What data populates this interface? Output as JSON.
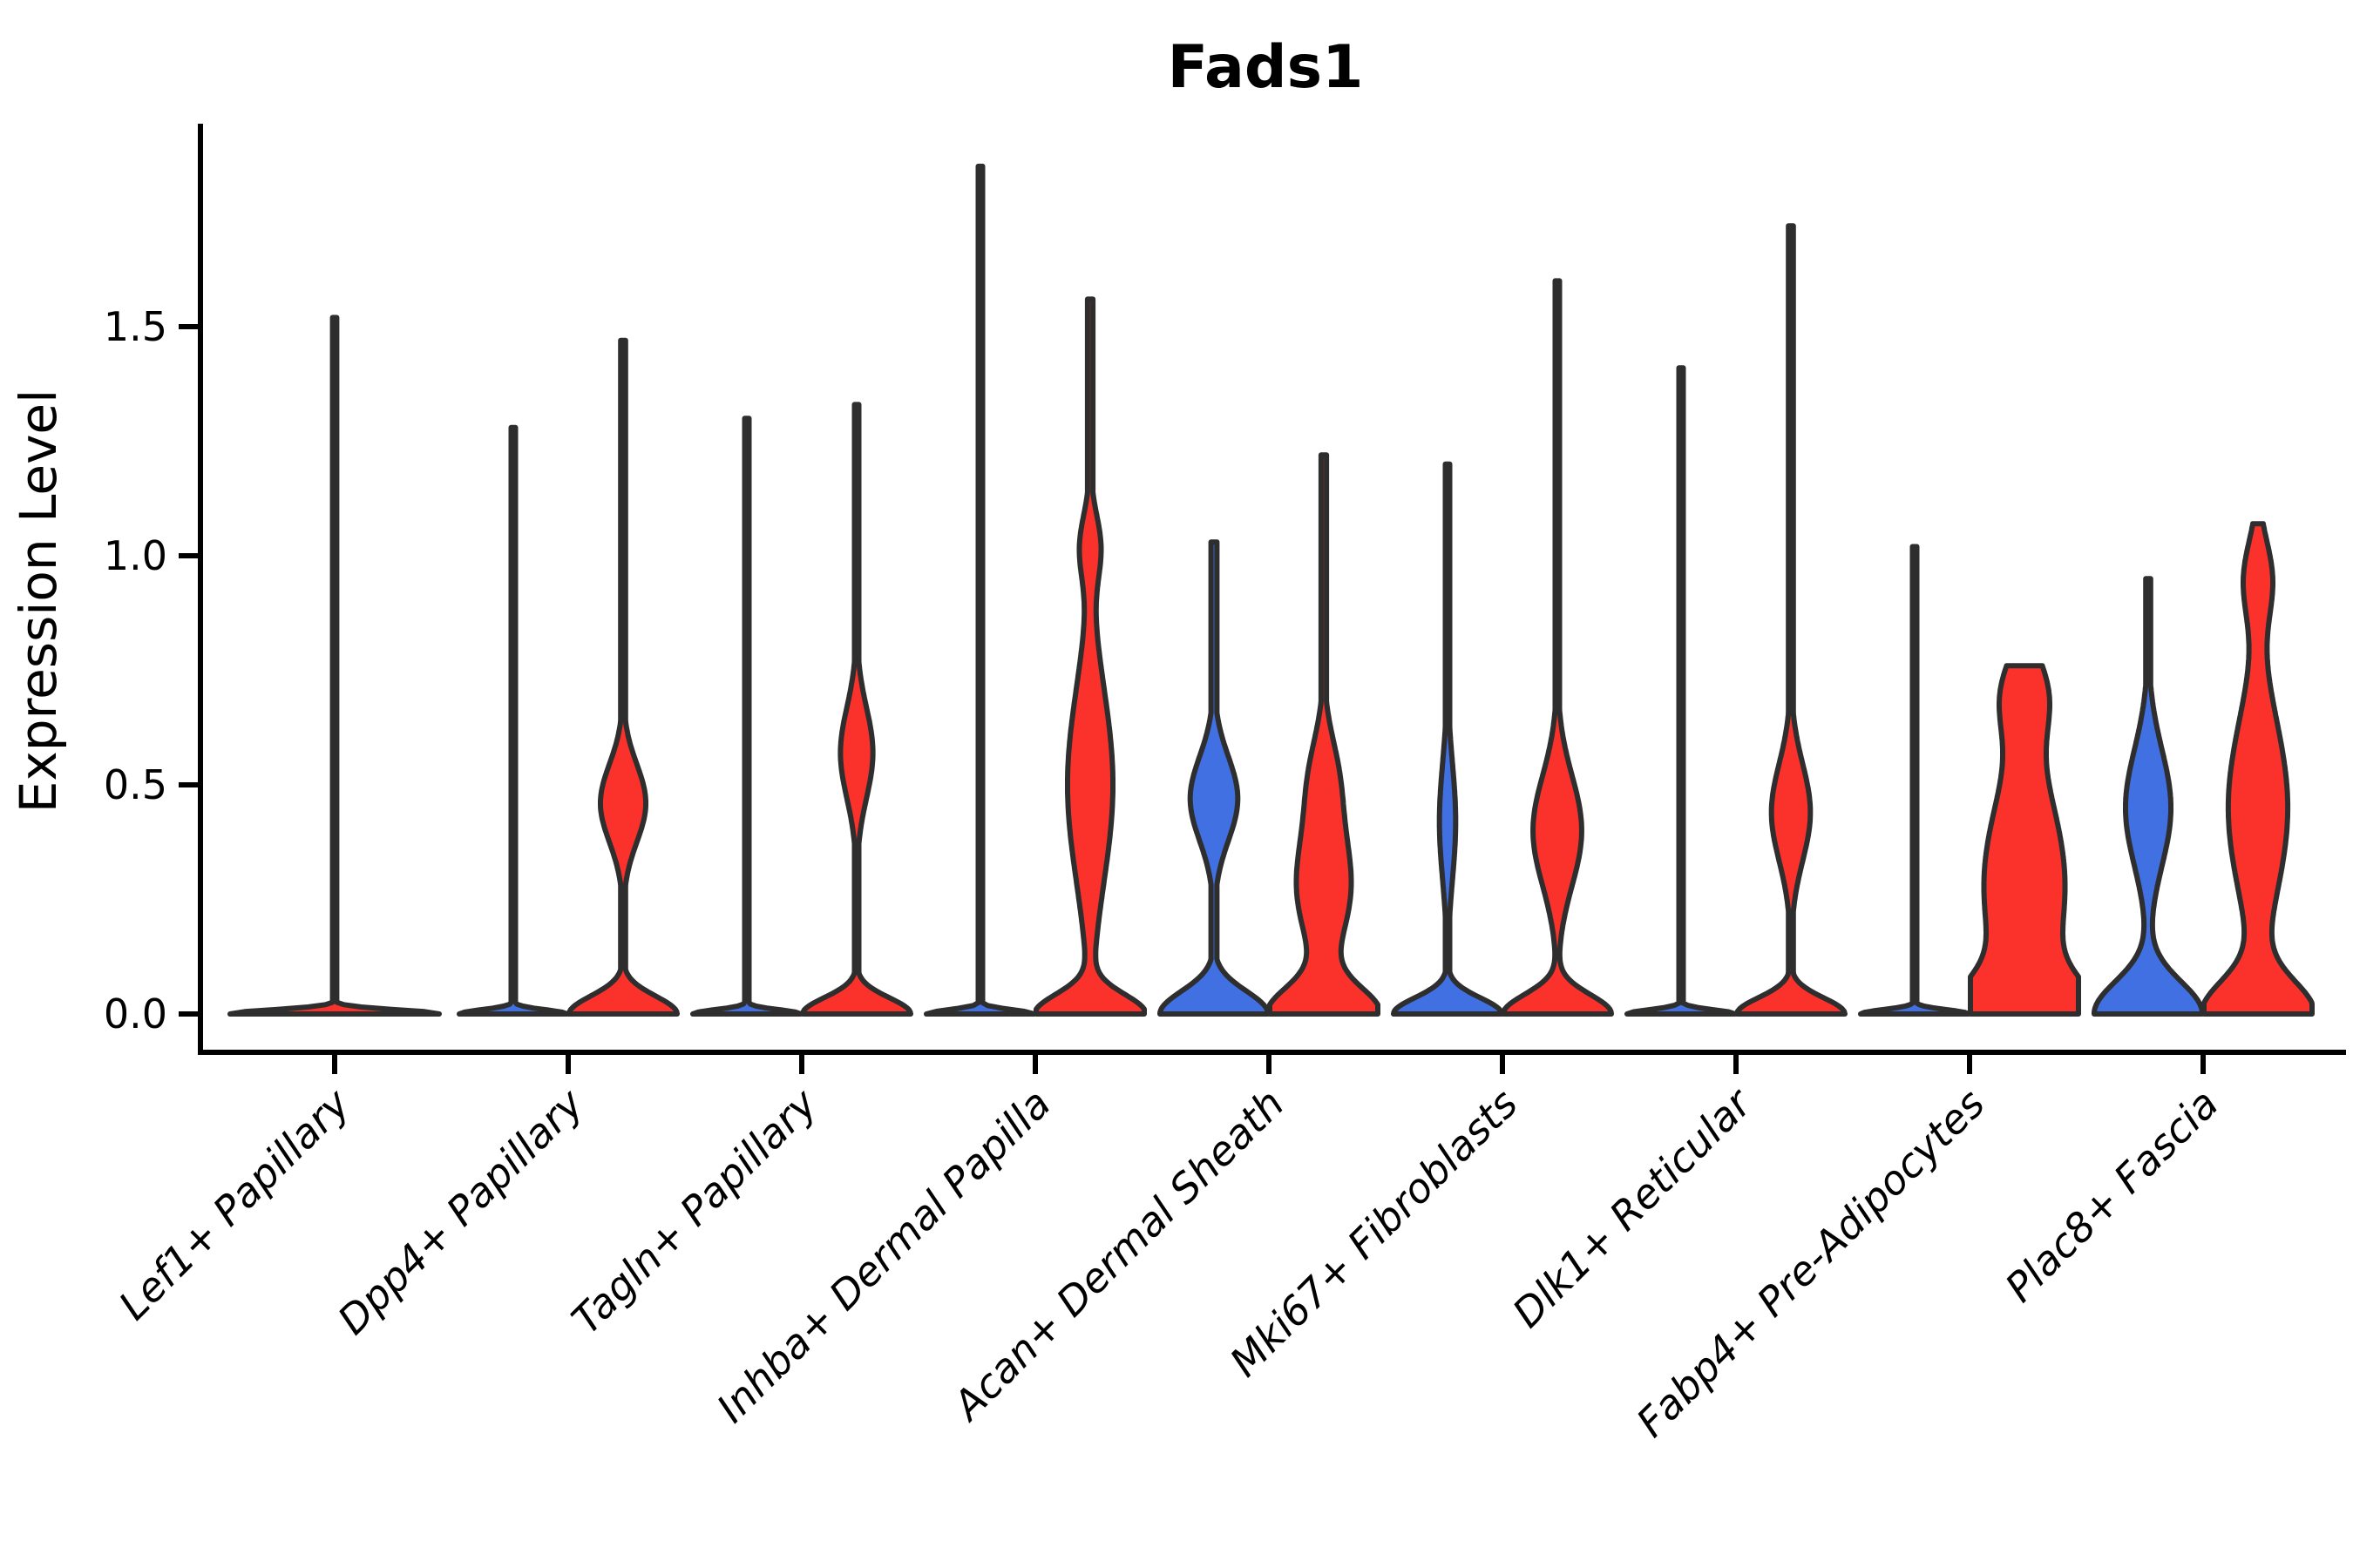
{
  "chart_data": {
    "type": "violin",
    "title": "Fads1",
    "ylabel": "Expression Level",
    "xlabel": "",
    "ylim": [
      -0.08,
      1.94
    ],
    "grid": false,
    "legend": "none",
    "yticks": [
      {
        "label": "0.0",
        "value": 0.0
      },
      {
        "label": "0.5",
        "value": 0.5
      },
      {
        "label": "1.0",
        "value": 1.0
      },
      {
        "label": "1.5",
        "value": 1.5
      }
    ],
    "colors": {
      "blue": "#4070e2",
      "red": "#fb322c",
      "outline": "#2e2e2e",
      "axis": "#000000",
      "background": "#ffffff"
    },
    "categories": [
      "Lef1+ Papillary",
      "Dpp4+ Papillary",
      "Tagln+ Papillary",
      "Inhba+ Dermal Papilla",
      "Acan+ Dermal Sheath",
      "Mki67+ Fibroblasts",
      "Dlk1+ Reticular",
      "Fabp4+ Pre-Adipocytes",
      "Plac8+ Fascia"
    ],
    "violins": [
      {
        "category": "Lef1+ Papillary",
        "group": "single",
        "pos": "center",
        "color": "red",
        "max": 1.52,
        "bumps": [
          [
            1,
            0,
            0.013
          ]
        ],
        "spike": 0.02
      },
      {
        "category": "Dpp4+ Papillary",
        "group": "group1",
        "pos": "left",
        "color": "blue",
        "max": 1.28,
        "bumps": [
          [
            1,
            0,
            0.013
          ]
        ],
        "spike": 0.04
      },
      {
        "category": "Dpp4+ Papillary",
        "group": "group2",
        "pos": "right",
        "color": "red",
        "max": 1.47,
        "bumps": [
          [
            1,
            0,
            0.055
          ],
          [
            0.42,
            0.46,
            0.12
          ]
        ],
        "spike": 0.045
      },
      {
        "category": "Tagln+ Papillary",
        "group": "group1",
        "pos": "left",
        "color": "blue",
        "max": 1.3,
        "bumps": [
          [
            1,
            0,
            0.013
          ]
        ],
        "spike": 0.04
      },
      {
        "category": "Tagln+ Papillary",
        "group": "group2",
        "pos": "right",
        "color": "red",
        "max": 1.33,
        "bumps": [
          [
            1,
            0,
            0.05
          ],
          [
            0.3,
            0.57,
            0.14
          ]
        ],
        "spike": 0.04
      },
      {
        "category": "Inhba+ Dermal Papilla",
        "group": "group1",
        "pos": "left",
        "color": "blue",
        "max": 1.85,
        "bumps": [
          [
            1,
            0,
            0.013
          ]
        ],
        "spike": 0.04
      },
      {
        "category": "Inhba+ Dermal Papilla",
        "group": "group2",
        "pos": "right",
        "color": "red",
        "max": 1.56,
        "bumps": [
          [
            1,
            0,
            0.06
          ],
          [
            0.42,
            0.5,
            0.3
          ],
          [
            0.18,
            1.02,
            0.1
          ]
        ],
        "spike": 0.05
      },
      {
        "category": "Acan+ Dermal Sheath",
        "group": "group1",
        "pos": "left",
        "color": "blue",
        "max": 1.03,
        "bumps": [
          [
            1,
            0,
            0.07
          ],
          [
            0.44,
            0.47,
            0.13
          ]
        ],
        "spike": 0.055
      },
      {
        "category": "Acan+ Dermal Sheath",
        "group": "group2",
        "pos": "right",
        "color": "red",
        "max": 1.22,
        "bumps": [
          [
            1,
            0,
            0.08
          ],
          [
            0.5,
            0.28,
            0.18
          ],
          [
            0.22,
            0.52,
            0.13
          ]
        ],
        "spike": 0.05
      },
      {
        "category": "Mki67+ Fibroblasts",
        "group": "group1",
        "pos": "left",
        "color": "blue",
        "max": 1.2,
        "bumps": [
          [
            1,
            0,
            0.05
          ],
          [
            0.15,
            0.42,
            0.18
          ]
        ],
        "spike": 0.04
      },
      {
        "category": "Mki67+ Fibroblasts",
        "group": "group2",
        "pos": "right",
        "color": "red",
        "max": 1.6,
        "bumps": [
          [
            1,
            0,
            0.06
          ],
          [
            0.45,
            0.4,
            0.17
          ]
        ],
        "spike": 0.04
      },
      {
        "category": "Dlk1+ Reticular",
        "group": "group1",
        "pos": "left",
        "color": "blue",
        "max": 1.41,
        "bumps": [
          [
            1,
            0,
            0.013
          ]
        ],
        "spike": 0.04
      },
      {
        "category": "Dlk1+ Reticular",
        "group": "group2",
        "pos": "right",
        "color": "red",
        "max": 1.72,
        "bumps": [
          [
            1,
            0,
            0.05
          ],
          [
            0.36,
            0.44,
            0.15
          ]
        ],
        "spike": 0.045
      },
      {
        "category": "Fabp4+ Pre-Adipocytes",
        "group": "group1",
        "pos": "left",
        "color": "blue",
        "max": 1.02,
        "bumps": [
          [
            1,
            0,
            0.013
          ]
        ],
        "spike": 0.04
      },
      {
        "category": "Fabp4+ Pre-Adipocytes",
        "group": "group2",
        "pos": "right",
        "color": "red",
        "max": 0.76,
        "bumps": [
          [
            1,
            0,
            0.1
          ],
          [
            0.75,
            0.28,
            0.3
          ],
          [
            0.35,
            0.7,
            0.12
          ]
        ],
        "spike": 0.05
      },
      {
        "category": "Plac8+ Fascia",
        "group": "group1",
        "pos": "left",
        "color": "blue",
        "max": 0.95,
        "bumps": [
          [
            1,
            0,
            0.1
          ],
          [
            0.42,
            0.45,
            0.18
          ]
        ],
        "spike": 0.045
      },
      {
        "category": "Plac8+ Fascia",
        "group": "group2",
        "pos": "right",
        "color": "red",
        "max": 1.07,
        "bumps": [
          [
            1,
            0,
            0.1
          ],
          [
            0.55,
            0.45,
            0.28
          ],
          [
            0.25,
            0.95,
            0.12
          ]
        ],
        "spike": 0.05
      }
    ]
  }
}
